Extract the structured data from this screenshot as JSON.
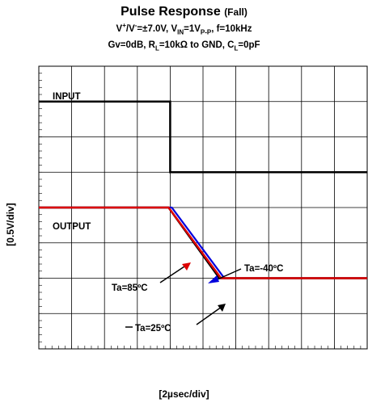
{
  "title": {
    "main": "Pulse Response",
    "suffix": "(Fall)",
    "line2": {
      "v_plus": "V",
      "plus_sup": "+",
      "slash": "/V",
      "minus_sup": "-",
      "supply": "=±7.0V, V",
      "vin_sub": "IN",
      "vin": "=1V",
      "pp_sub": "P-P",
      "freq": ", f=10kHz"
    },
    "line3": {
      "gain": "Gv=0dB, R",
      "rl_sub": "L",
      "rl": "=10kΩ to GND, C",
      "cl_sub": "L",
      "cl": "=0pF"
    }
  },
  "chart_data": {
    "type": "line",
    "xlabel": "[2µsec/div]",
    "ylabel": "[0.5V/div]",
    "x_divisions": 10,
    "y_divisions": 8,
    "grid": true,
    "series": [
      {
        "name": "INPUT",
        "color": "#000000",
        "points": [
          [
            0,
            7.0
          ],
          [
            4.0,
            7.0
          ],
          [
            4.0,
            5.0
          ],
          [
            10,
            5.0
          ]
        ]
      },
      {
        "name": "Ta=-40ºC",
        "color": "#0000dd",
        "points": [
          [
            0,
            4.0
          ],
          [
            4.05,
            4.0
          ],
          [
            5.65,
            2.0
          ],
          [
            10,
            2.0
          ]
        ]
      },
      {
        "name": "Ta=25ºC",
        "color": "#000000",
        "points": [
          [
            0,
            4.0
          ],
          [
            3.95,
            4.0
          ],
          [
            5.5,
            2.0
          ],
          [
            10,
            2.0
          ]
        ]
      },
      {
        "name": "Ta=85ºC",
        "color": "#dd0000",
        "points": [
          [
            0,
            4.0
          ],
          [
            3.95,
            4.0
          ],
          [
            5.55,
            2.0
          ],
          [
            10,
            2.0
          ]
        ]
      }
    ],
    "labels": {
      "input": "INPUT",
      "output": "OUTPUT",
      "ta_minus40": "Ta=-40ºC",
      "ta_85": "Ta=85ºC",
      "ta_25": "Ta=25ºC"
    }
  }
}
